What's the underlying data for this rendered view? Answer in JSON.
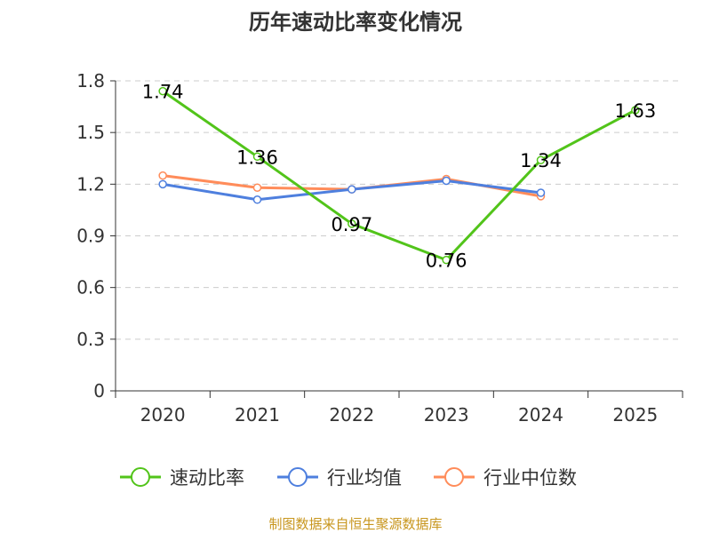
{
  "chart_data": {
    "type": "line",
    "title": "历年速动比率变化情况",
    "categories": [
      "2020",
      "2021",
      "2022",
      "2023",
      "2024",
      "2025"
    ],
    "ylim": [
      0,
      1.8
    ],
    "yticks": [
      "0",
      "0.3",
      "0.6",
      "0.9",
      "1.2",
      "1.5",
      "1.8"
    ],
    "grid": true,
    "legend_position": "bottom",
    "series": [
      {
        "name": "速动比率",
        "color": "#52c41a",
        "values": [
          1.74,
          1.36,
          0.97,
          0.76,
          1.34,
          1.63
        ],
        "labels": [
          "1.74",
          "1.36",
          "0.97",
          "0.76",
          "1.34",
          "1.63"
        ]
      },
      {
        "name": "行业均值",
        "color": "#4e7fde",
        "values": [
          1.2,
          1.11,
          1.17,
          1.22,
          1.15,
          null
        ]
      },
      {
        "name": "行业中位数",
        "color": "#ff8c5a",
        "values": [
          1.25,
          1.18,
          1.17,
          1.23,
          1.13,
          null
        ]
      }
    ],
    "source": "制图数据来自恒生聚源数据库"
  }
}
